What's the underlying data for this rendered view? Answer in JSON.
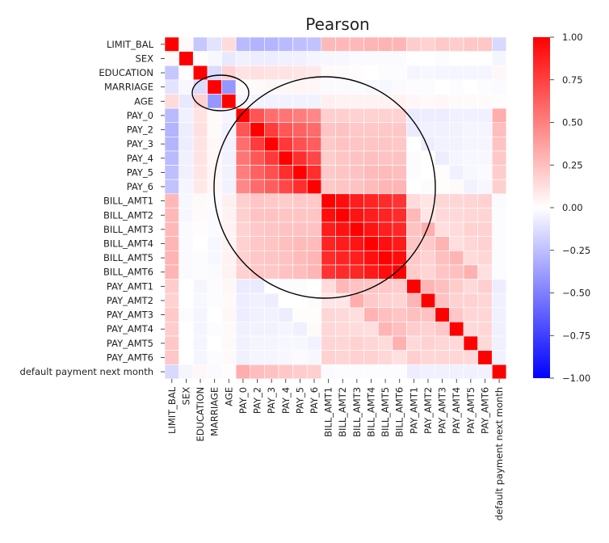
{
  "chart_data": {
    "type": "heatmap",
    "title": "Pearson",
    "labels": [
      "LIMIT_BAL",
      "SEX",
      "EDUCATION",
      "MARRIAGE",
      "AGE",
      "PAY_0",
      "PAY_2",
      "PAY_3",
      "PAY_4",
      "PAY_5",
      "PAY_6",
      "BILL_AMT1",
      "BILL_AMT2",
      "BILL_AMT3",
      "BILL_AMT4",
      "BILL_AMT5",
      "BILL_AMT6",
      "PAY_AMT1",
      "PAY_AMT2",
      "PAY_AMT3",
      "PAY_AMT4",
      "PAY_AMT5",
      "PAY_AMT6",
      "default payment next month"
    ],
    "matrix": [
      [
        1.0,
        0.02,
        -0.22,
        -0.11,
        0.14,
        -0.27,
        -0.3,
        -0.29,
        -0.27,
        -0.25,
        -0.24,
        0.28,
        0.28,
        0.28,
        0.29,
        0.3,
        0.29,
        0.2,
        0.18,
        0.21,
        0.2,
        0.22,
        0.22,
        -0.15
      ],
      [
        0.02,
        1.0,
        0.01,
        -0.03,
        -0.09,
        -0.06,
        -0.07,
        -0.07,
        -0.06,
        -0.06,
        -0.04,
        -0.03,
        -0.03,
        -0.02,
        -0.02,
        -0.02,
        -0.02,
        0.0,
        -0.0,
        -0.01,
        -0.0,
        -0.0,
        -0.0,
        -0.04
      ],
      [
        -0.22,
        0.01,
        1.0,
        -0.14,
        0.18,
        0.11,
        0.12,
        0.11,
        0.11,
        0.1,
        0.09,
        0.02,
        0.02,
        0.01,
        -0.0,
        -0.01,
        -0.01,
        -0.04,
        -0.03,
        -0.04,
        -0.04,
        -0.04,
        -0.04,
        0.03
      ],
      [
        -0.11,
        -0.03,
        -0.14,
        1.0,
        -0.41,
        0.02,
        0.02,
        0.03,
        0.03,
        0.04,
        0.03,
        -0.02,
        -0.02,
        -0.02,
        -0.03,
        -0.03,
        -0.02,
        -0.01,
        -0.01,
        -0.0,
        -0.01,
        -0.0,
        -0.01,
        -0.02
      ],
      [
        0.14,
        -0.09,
        0.18,
        -0.41,
        1.0,
        -0.04,
        -0.05,
        -0.05,
        -0.05,
        -0.05,
        -0.05,
        0.06,
        0.05,
        0.05,
        0.05,
        0.05,
        0.05,
        0.03,
        0.02,
        0.03,
        0.02,
        0.02,
        0.02,
        0.01
      ],
      [
        -0.27,
        -0.06,
        0.11,
        0.02,
        -0.04,
        1.0,
        0.67,
        0.57,
        0.54,
        0.51,
        0.47,
        0.19,
        0.19,
        0.18,
        0.18,
        0.18,
        0.18,
        -0.08,
        -0.07,
        -0.07,
        -0.06,
        -0.06,
        -0.06,
        0.32
      ],
      [
        -0.3,
        -0.07,
        0.12,
        0.02,
        -0.05,
        0.67,
        1.0,
        0.77,
        0.66,
        0.62,
        0.58,
        0.23,
        0.24,
        0.22,
        0.22,
        0.22,
        0.22,
        -0.08,
        -0.06,
        -0.06,
        -0.05,
        -0.04,
        -0.04,
        0.26
      ],
      [
        -0.29,
        -0.07,
        0.11,
        0.03,
        -0.05,
        0.57,
        0.77,
        1.0,
        0.78,
        0.69,
        0.63,
        0.21,
        0.24,
        0.23,
        0.23,
        0.23,
        0.22,
        0.0,
        -0.07,
        -0.05,
        -0.05,
        -0.04,
        -0.04,
        0.24
      ],
      [
        -0.27,
        -0.06,
        0.11,
        0.03,
        -0.05,
        0.54,
        0.66,
        0.78,
        1.0,
        0.82,
        0.72,
        0.2,
        0.23,
        0.24,
        0.25,
        0.24,
        0.24,
        -0.01,
        -0.0,
        -0.07,
        -0.04,
        -0.03,
        -0.03,
        0.22
      ],
      [
        -0.25,
        -0.06,
        0.1,
        0.04,
        -0.05,
        0.51,
        0.62,
        0.69,
        0.82,
        1.0,
        0.82,
        0.21,
        0.23,
        0.24,
        0.27,
        0.27,
        0.26,
        -0.01,
        -0.0,
        0.01,
        -0.06,
        -0.03,
        -0.02,
        0.2
      ],
      [
        -0.24,
        -0.04,
        0.09,
        0.03,
        -0.05,
        0.47,
        0.58,
        0.63,
        0.72,
        0.82,
        1.0,
        0.21,
        0.23,
        0.24,
        0.27,
        0.29,
        0.29,
        -0.0,
        -0.01,
        0.01,
        0.02,
        -0.05,
        -0.03,
        0.19
      ],
      [
        0.28,
        -0.03,
        0.02,
        -0.02,
        0.06,
        0.19,
        0.23,
        0.21,
        0.2,
        0.21,
        0.21,
        1.0,
        0.95,
        0.89,
        0.86,
        0.83,
        0.8,
        0.14,
        0.1,
        0.16,
        0.16,
        0.17,
        0.18,
        -0.02
      ],
      [
        0.28,
        -0.03,
        0.02,
        -0.02,
        0.05,
        0.19,
        0.24,
        0.24,
        0.23,
        0.23,
        0.23,
        0.95,
        1.0,
        0.93,
        0.89,
        0.86,
        0.83,
        0.28,
        0.1,
        0.15,
        0.15,
        0.16,
        0.17,
        -0.01
      ],
      [
        0.28,
        -0.02,
        0.01,
        -0.02,
        0.05,
        0.18,
        0.22,
        0.23,
        0.24,
        0.24,
        0.24,
        0.89,
        0.93,
        1.0,
        0.92,
        0.88,
        0.85,
        0.24,
        0.32,
        0.13,
        0.14,
        0.18,
        0.18,
        -0.01
      ],
      [
        0.29,
        -0.02,
        -0.0,
        -0.03,
        0.05,
        0.18,
        0.22,
        0.23,
        0.25,
        0.27,
        0.27,
        0.86,
        0.89,
        0.92,
        1.0,
        0.94,
        0.9,
        0.23,
        0.21,
        0.3,
        0.13,
        0.16,
        0.18,
        -0.01
      ],
      [
        0.3,
        -0.02,
        -0.01,
        -0.03,
        0.05,
        0.18,
        0.22,
        0.23,
        0.24,
        0.27,
        0.29,
        0.83,
        0.86,
        0.88,
        0.94,
        1.0,
        0.95,
        0.22,
        0.18,
        0.25,
        0.29,
        0.14,
        0.16,
        -0.01
      ],
      [
        0.29,
        -0.02,
        -0.01,
        -0.02,
        0.05,
        0.18,
        0.22,
        0.22,
        0.24,
        0.26,
        0.29,
        0.8,
        0.83,
        0.85,
        0.9,
        0.95,
        1.0,
        0.2,
        0.17,
        0.23,
        0.25,
        0.31,
        0.12,
        -0.01
      ],
      [
        0.2,
        0.0,
        -0.04,
        -0.01,
        0.03,
        -0.08,
        -0.08,
        0.0,
        -0.01,
        -0.01,
        -0.0,
        0.14,
        0.28,
        0.24,
        0.23,
        0.22,
        0.2,
        1.0,
        0.29,
        0.25,
        0.2,
        0.15,
        0.19,
        -0.07
      ],
      [
        0.18,
        -0.0,
        -0.03,
        -0.01,
        0.02,
        -0.07,
        -0.06,
        -0.07,
        -0.0,
        -0.0,
        -0.01,
        0.1,
        0.1,
        0.32,
        0.21,
        0.18,
        0.17,
        0.29,
        1.0,
        0.24,
        0.18,
        0.18,
        0.16,
        -0.06
      ],
      [
        0.21,
        -0.01,
        -0.04,
        -0.0,
        0.03,
        -0.07,
        -0.06,
        -0.05,
        -0.07,
        0.01,
        0.01,
        0.16,
        0.15,
        0.13,
        0.3,
        0.25,
        0.23,
        0.25,
        0.24,
        1.0,
        0.22,
        0.16,
        0.16,
        -0.06
      ],
      [
        0.2,
        -0.0,
        -0.04,
        -0.01,
        0.02,
        -0.06,
        -0.05,
        -0.05,
        -0.04,
        -0.06,
        0.02,
        0.16,
        0.15,
        0.14,
        0.13,
        0.29,
        0.25,
        0.2,
        0.18,
        0.22,
        1.0,
        0.15,
        0.16,
        -0.06
      ],
      [
        0.22,
        -0.0,
        -0.04,
        -0.0,
        0.02,
        -0.06,
        -0.04,
        -0.04,
        -0.03,
        -0.03,
        -0.05,
        0.17,
        0.16,
        0.18,
        0.16,
        0.14,
        0.31,
        0.15,
        0.18,
        0.16,
        0.15,
        1.0,
        0.15,
        -0.06
      ],
      [
        0.22,
        -0.0,
        -0.04,
        -0.01,
        0.02,
        -0.06,
        -0.04,
        -0.04,
        -0.03,
        -0.02,
        -0.03,
        0.18,
        0.17,
        0.18,
        0.18,
        0.16,
        0.12,
        0.19,
        0.16,
        0.16,
        0.16,
        0.15,
        1.0,
        -0.05
      ],
      [
        -0.15,
        -0.04,
        0.03,
        -0.02,
        0.01,
        0.32,
        0.26,
        0.24,
        0.22,
        0.2,
        0.19,
        -0.02,
        -0.01,
        -0.01,
        -0.01,
        -0.01,
        -0.01,
        -0.07,
        -0.06,
        -0.06,
        -0.06,
        -0.06,
        -0.05,
        1.0
      ]
    ],
    "vmin": -1.0,
    "vmax": 1.0,
    "colormap": "bwr",
    "colorbar_ticks": [
      "1.00",
      "0.75",
      "0.50",
      "0.25",
      "0.00",
      "−0.25",
      "−0.50",
      "−0.75",
      "−1.00"
    ],
    "colorbar_values": [
      1.0,
      0.75,
      0.5,
      0.25,
      0.0,
      -0.25,
      -0.5,
      -0.75,
      -1.0
    ],
    "annotations": [
      {
        "shape": "ellipse",
        "around": [
          "MARRIAGE",
          "AGE"
        ]
      },
      {
        "shape": "circle",
        "around": [
          "PAY_0",
          "BILL_AMT6"
        ]
      }
    ],
    "colors": {
      "min": "#0000ff",
      "mid": "#ffffff",
      "max": "#ff0000",
      "grid": "#ffffff",
      "annotation": "#000000"
    }
  }
}
